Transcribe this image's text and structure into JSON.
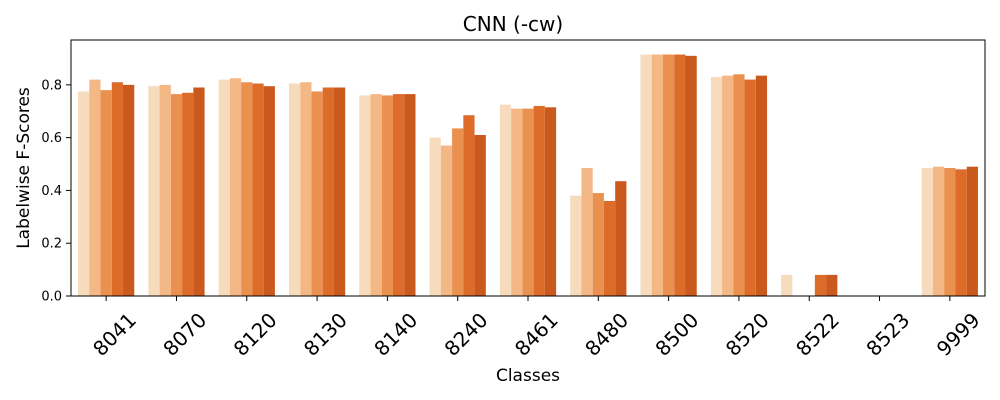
{
  "chart_data": {
    "type": "bar",
    "title": "CNN (-cw)",
    "xlabel": "Classes",
    "ylabel": "Labelwise F-Scores",
    "ylim": [
      0,
      0.97
    ],
    "yticks": [
      "0.0",
      "0.2",
      "0.4",
      "0.6",
      "0.8"
    ],
    "yticks_values": [
      0,
      0.2,
      0.4,
      0.6,
      0.8
    ],
    "grid": false,
    "legend": "none",
    "categories": [
      "8041",
      "8070",
      "8120",
      "8130",
      "8140",
      "8240",
      "8461",
      "8480",
      "8500",
      "8520",
      "8522",
      "8523",
      "9999"
    ],
    "colors": [
      "#f7dbbd",
      "#f3b886",
      "#eb9150",
      "#dd6c2a",
      "#c9591c",
      "#9f4319"
    ],
    "series": [
      {
        "values": [
          0.775,
          0.795,
          0.82,
          0.805,
          0.76,
          0.6,
          0.725,
          0.38,
          0.915,
          0.83,
          0.08,
          0.0,
          0.485
        ]
      },
      {
        "values": [
          0.82,
          0.8,
          0.825,
          0.81,
          0.765,
          0.57,
          0.71,
          0.485,
          0.915,
          0.835,
          0.0,
          0.0,
          0.49
        ]
      },
      {
        "values": [
          0.78,
          0.765,
          0.81,
          0.775,
          0.76,
          0.635,
          0.71,
          0.39,
          0.915,
          0.84,
          0.0,
          0.0,
          0.485
        ]
      },
      {
        "values": [
          0.81,
          0.77,
          0.805,
          0.79,
          0.765,
          0.685,
          0.72,
          0.36,
          0.915,
          0.82,
          0.08,
          0.0,
          0.48
        ]
      },
      {
        "values": [
          0.8,
          0.79,
          0.795,
          0.79,
          0.765,
          0.61,
          0.715,
          0.435,
          0.91,
          0.835,
          0.08,
          0.0,
          0.49
        ]
      }
    ]
  }
}
